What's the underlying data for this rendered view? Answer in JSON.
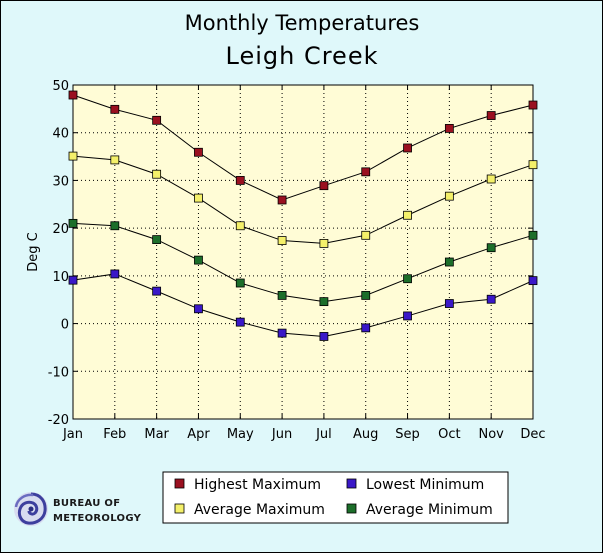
{
  "chart_data": {
    "type": "line",
    "title": "Monthly Temperatures",
    "subtitle": "Leigh Creek",
    "xlabel": "",
    "ylabel": "Deg C",
    "ylim": [
      -20,
      50
    ],
    "yticks": [
      -20,
      -10,
      0,
      10,
      20,
      30,
      40,
      50
    ],
    "grid": true,
    "legend_position": "bottom",
    "categories": [
      "Jan",
      "Feb",
      "Mar",
      "Apr",
      "May",
      "Jun",
      "Jul",
      "Aug",
      "Sep",
      "Oct",
      "Nov",
      "Dec"
    ],
    "series": [
      {
        "name": "Highest Maximum",
        "color": "#9a1020",
        "values": [
          47.9,
          44.9,
          42.6,
          35.9,
          30.0,
          25.9,
          28.9,
          31.8,
          36.8,
          40.9,
          43.6,
          45.8
        ]
      },
      {
        "name": "Average Maximum",
        "color": "#f4f06a",
        "values": [
          35.1,
          34.3,
          31.3,
          26.3,
          20.5,
          17.4,
          16.8,
          18.5,
          22.7,
          26.7,
          30.3,
          33.3
        ]
      },
      {
        "name": "Average Minimum",
        "color": "#1c6e2a",
        "values": [
          21.0,
          20.5,
          17.6,
          13.3,
          8.5,
          5.9,
          4.6,
          5.9,
          9.4,
          12.9,
          15.9,
          18.5
        ]
      },
      {
        "name": "Lowest Minimum",
        "color": "#3a18c8",
        "values": [
          9.1,
          10.4,
          6.8,
          3.1,
          0.3,
          -2.0,
          -2.7,
          -0.9,
          1.6,
          4.2,
          5.1,
          9.0
        ]
      }
    ]
  },
  "legend": {
    "items": [
      {
        "label": "Highest Maximum",
        "color": "#9a1020"
      },
      {
        "label": "Lowest Minimum",
        "color": "#3a18c8"
      },
      {
        "label": "Average Maximum",
        "color": "#f4f06a"
      },
      {
        "label": "Average Minimum",
        "color": "#1c6e2a"
      }
    ]
  },
  "logo": {
    "line1": "BUREAU OF",
    "line2": "METEOROLOGY",
    "icon": "swirl-icon"
  },
  "colors": {
    "background": "#dff8fa",
    "plot_background": "#fffcd6",
    "grid": "#000000"
  }
}
